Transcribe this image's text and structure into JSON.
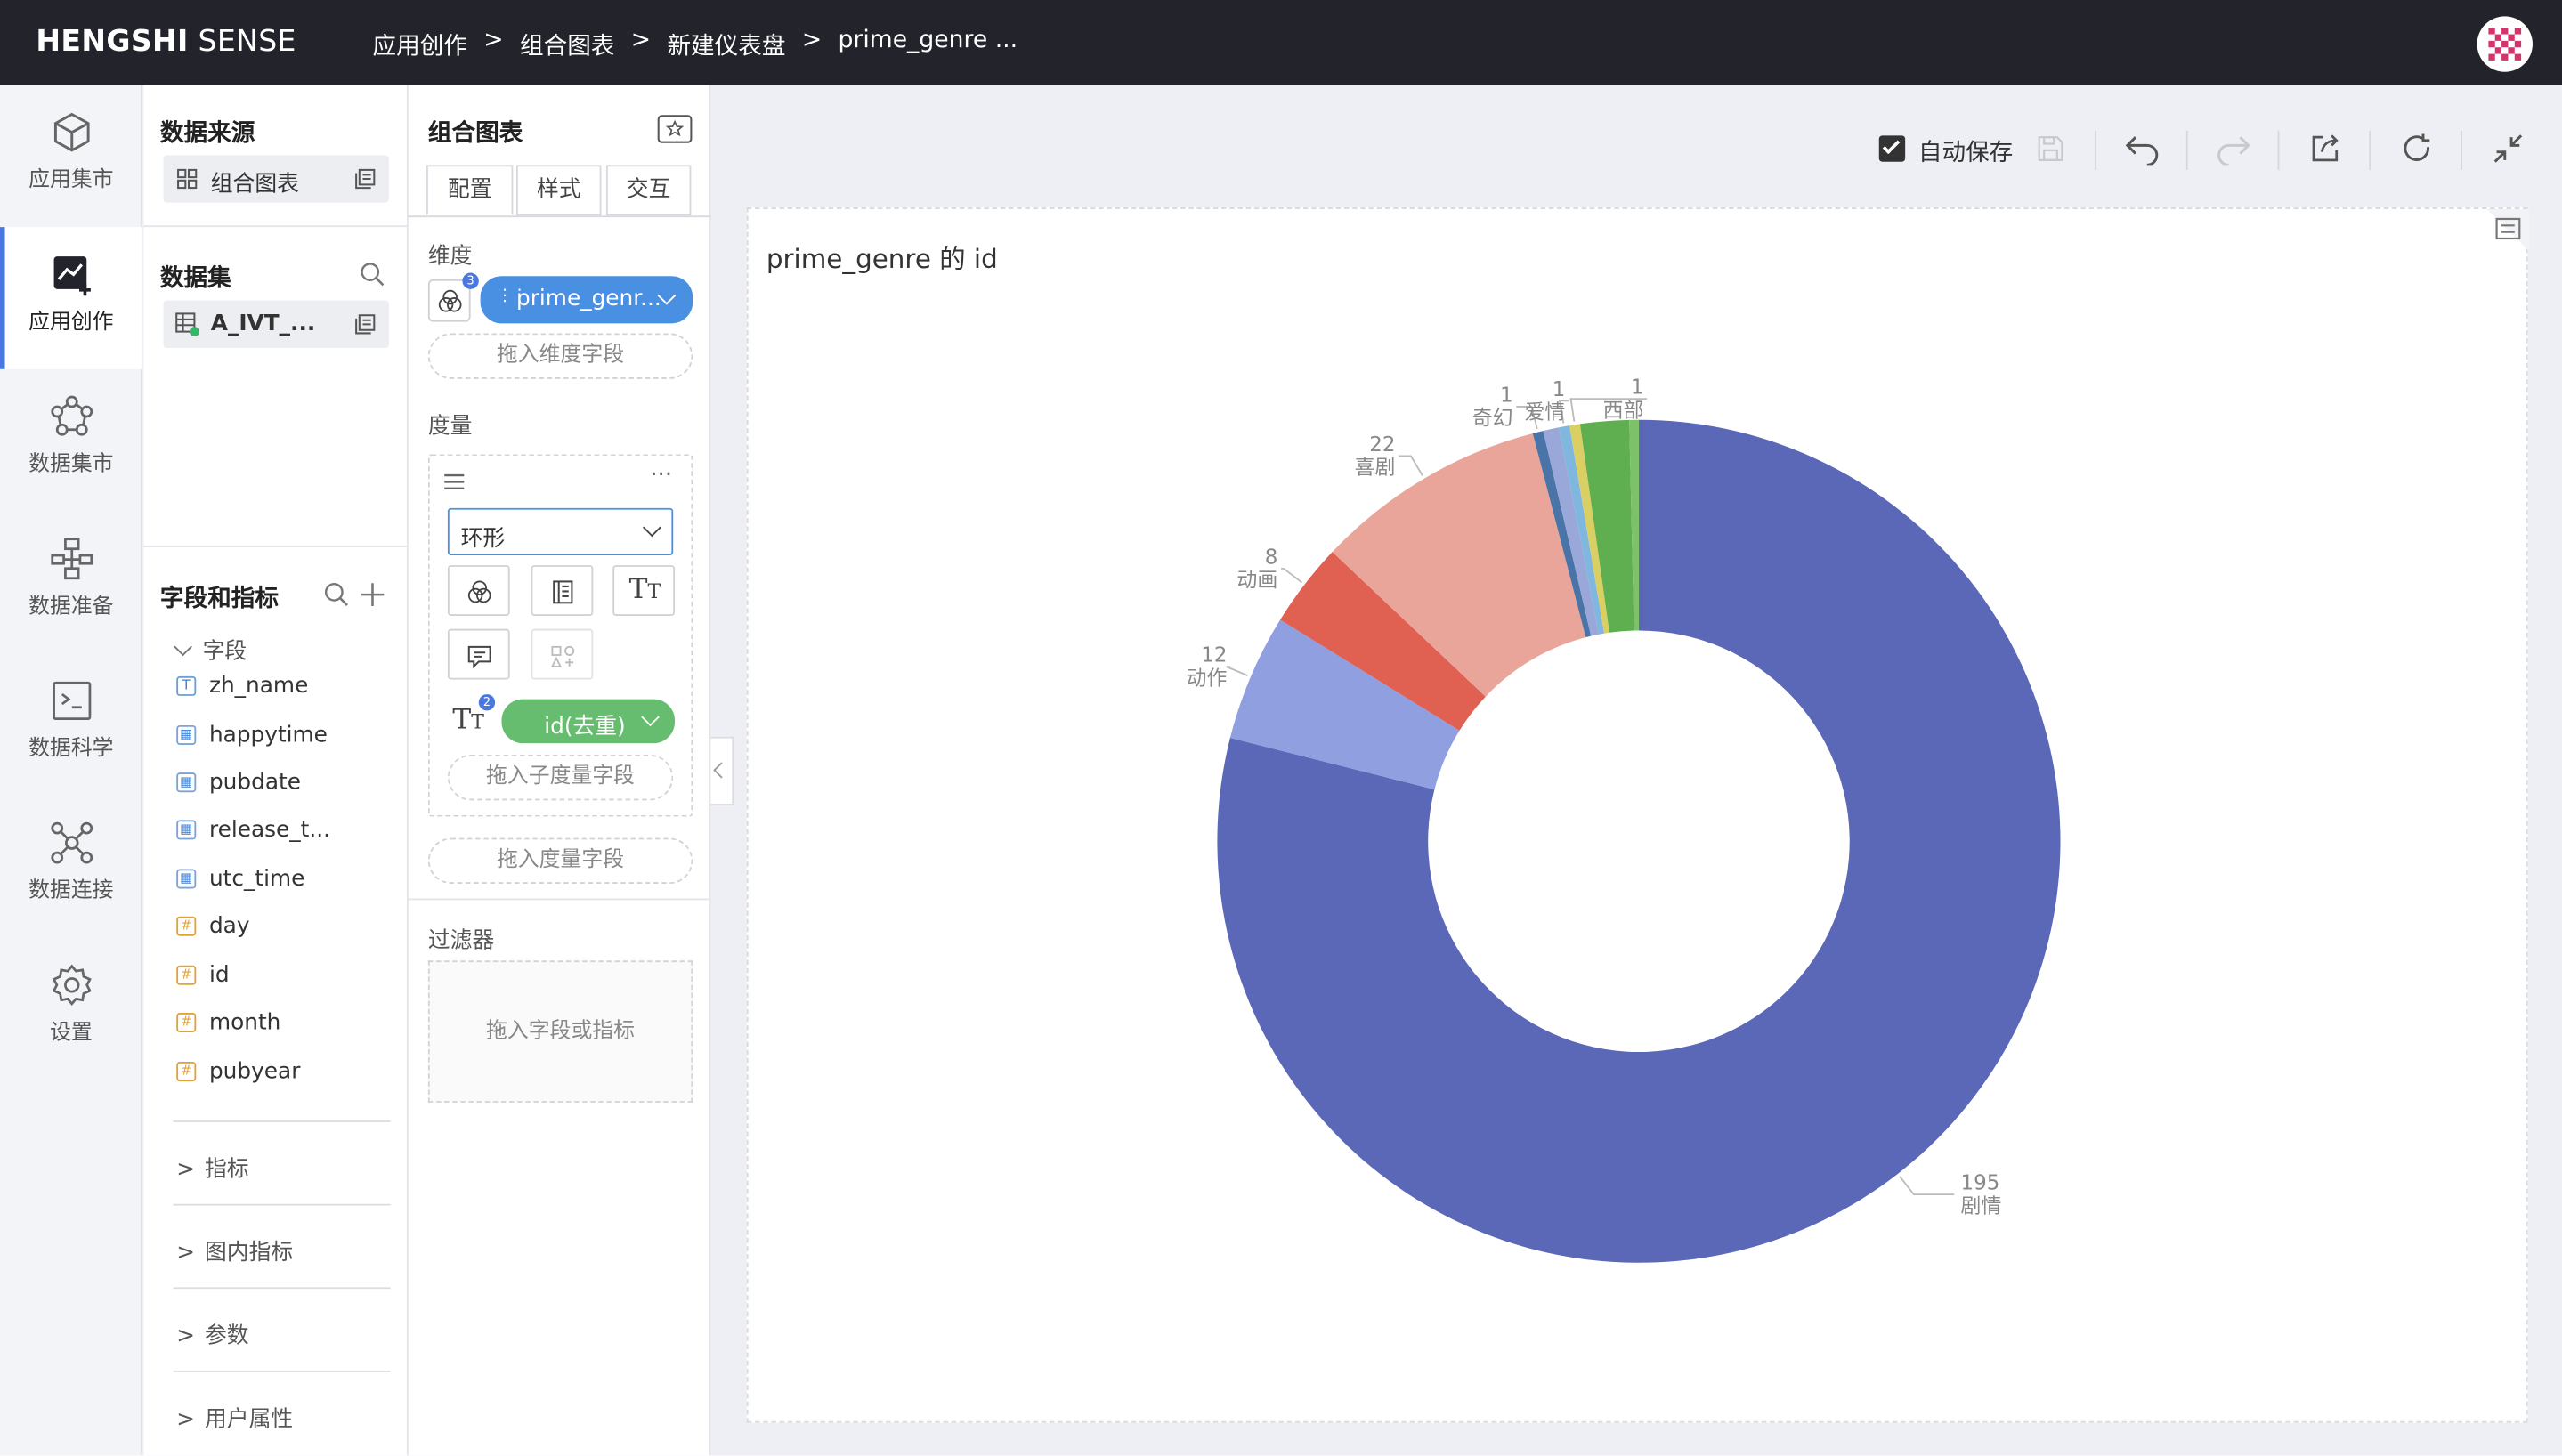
{
  "header": {
    "logo_bold": "HENGSHI",
    "logo_light": " SENSE",
    "breadcrumb": [
      "应用创作",
      "组合图表",
      "新建仪表盘",
      "prime_genre ..."
    ],
    "separator": ">"
  },
  "nav": {
    "items": [
      {
        "label": "应用集市",
        "icon": "cube-icon"
      },
      {
        "label": "应用创作",
        "icon": "chart-create-icon",
        "active": true
      },
      {
        "label": "数据集市",
        "icon": "network-icon"
      },
      {
        "label": "数据准备",
        "icon": "flow-icon"
      },
      {
        "label": "数据科学",
        "icon": "terminal-icon"
      },
      {
        "label": "数据连接",
        "icon": "connection-icon"
      },
      {
        "label": "设置",
        "icon": "gear-icon"
      }
    ]
  },
  "left_panel": {
    "data_source_title": "数据来源",
    "data_source_item": "组合图表",
    "dataset_title": "数据集",
    "dataset_item": "A_IVT_...",
    "fields_title": "字段和指标",
    "fields_group": "字段",
    "fields": [
      {
        "name": "zh_name",
        "type": "text"
      },
      {
        "name": "happytime",
        "type": "date"
      },
      {
        "name": "pubdate",
        "type": "date"
      },
      {
        "name": "release_t...",
        "type": "date"
      },
      {
        "name": "utc_time",
        "type": "date"
      },
      {
        "name": "day",
        "type": "number"
      },
      {
        "name": "id",
        "type": "number"
      },
      {
        "name": "month",
        "type": "number"
      },
      {
        "name": "pubyear",
        "type": "number"
      }
    ],
    "sections": [
      "指标",
      "图内指标",
      "参数",
      "用户属性"
    ]
  },
  "config_panel": {
    "title": "组合图表",
    "tabs": [
      "配置",
      "样式",
      "交互"
    ],
    "dimension_label": "维度",
    "dimension_badge": "3",
    "dimension_pill": "prime_genr...",
    "dimension_drop": "拖入维度字段",
    "measure_label": "度量",
    "chart_type": "环形",
    "measure_badge": "2",
    "measure_pill": "id(去重)",
    "sub_measure_drop": "拖入子度量字段",
    "measure_drop": "拖入度量字段",
    "filter_label": "过滤器",
    "filter_drop": "拖入字段或指标"
  },
  "toolbar": {
    "autosave_label": "自动保存",
    "autosave_checked": true
  },
  "chart_data": {
    "type": "pie",
    "donut": true,
    "title": "prime_genre 的 id",
    "categories": [
      "剧情",
      "动作",
      "动画",
      "喜剧",
      "奇幻",
      "爱情",
      "西部"
    ],
    "values": [
      195,
      12,
      8,
      22,
      1,
      1,
      1
    ],
    "extra_slices": [
      {
        "color": "#9aa7d9",
        "value": 1.5
      },
      {
        "color": "#5fae4f",
        "value": 4.6
      },
      {
        "color": "#7dc26b",
        "value": 0.9
      }
    ],
    "colors": {
      "剧情": "#5b67b7",
      "动作": "#8f9fe0",
      "动画": "#e06052",
      "喜剧": "#eaa59a",
      "奇幻": "#4a73a8",
      "爱情": "#7fb7de",
      "西部": "#d9cf62"
    },
    "legend": "none"
  }
}
